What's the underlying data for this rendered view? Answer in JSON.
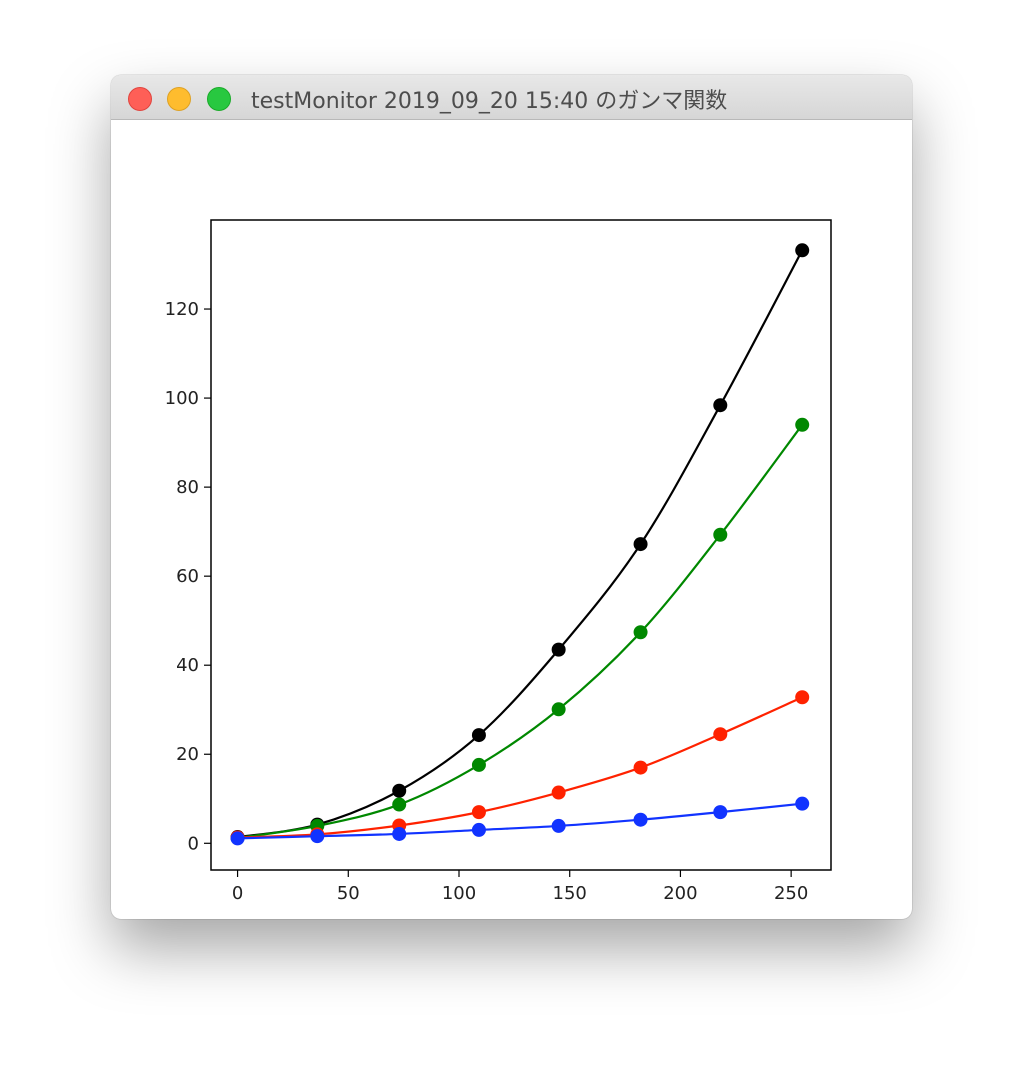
{
  "window": {
    "title": "testMonitor 2019_09_20 15:40 のガンマ関数"
  },
  "chart_data": {
    "type": "line",
    "title": "",
    "xlabel": "",
    "ylabel": "",
    "xlim": [
      -12,
      268
    ],
    "ylim": [
      -6,
      140
    ],
    "xticks": [
      0,
      50,
      100,
      150,
      200,
      250
    ],
    "yticks": [
      0,
      20,
      40,
      60,
      80,
      100,
      120
    ],
    "grid": false,
    "legend": "none",
    "x": [
      0,
      36,
      73,
      109,
      145,
      182,
      218,
      255
    ],
    "series": [
      {
        "color": "#000000",
        "values": [
          1.4,
          4.2,
          11.8,
          24.3,
          43.5,
          67.2,
          98.4,
          133.2
        ]
      },
      {
        "color": "#008800",
        "values": [
          1.2,
          3.9,
          8.7,
          17.6,
          30.1,
          47.4,
          69.3,
          94.0
        ]
      },
      {
        "color": "#ff2200",
        "values": [
          1.3,
          2.0,
          4.0,
          7.0,
          11.4,
          17.0,
          24.5,
          32.8
        ]
      },
      {
        "color": "#1133ff",
        "values": [
          1.1,
          1.6,
          2.1,
          3.0,
          3.9,
          5.3,
          7.0,
          8.9
        ]
      }
    ]
  }
}
